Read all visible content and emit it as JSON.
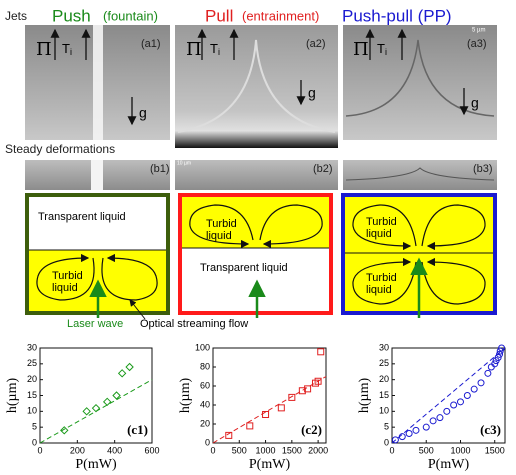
{
  "header": {
    "jets": "Jets",
    "push": "Push",
    "push_note": "(fountain)",
    "pull": "Pull",
    "pull_note": "(entrainment)",
    "push_pull": "Push-pull (PP)"
  },
  "symbols": {
    "pi": "Π",
    "t": "T",
    "i": "i",
    "g": "g"
  },
  "photos": {
    "a": [
      "(a1)",
      "(a2)",
      "(a3)"
    ],
    "scale_a3": "5 µm",
    "section": "Steady deformations",
    "b": [
      "(b1)",
      "(b2)",
      "(b3)"
    ],
    "scale_b2": "10 µm"
  },
  "diagrams": {
    "transparent": "Transparent liquid",
    "turbid": [
      "Turbid",
      "liquid"
    ],
    "laser": "Laser wave",
    "flow": "Optical streaming flow"
  },
  "chart_data": [
    {
      "type": "scatter",
      "label": "(c1)",
      "xlabel": "P(mW)",
      "ylabel": "h(µm)",
      "marker": "diamond",
      "color": "#1a9a1a",
      "x": [
        130,
        250,
        300,
        360,
        410,
        440,
        480
      ],
      "values": [
        4,
        10,
        11,
        13,
        15,
        22,
        24
      ],
      "fit": {
        "x": [
          0,
          600
        ],
        "values": [
          0,
          20
        ]
      },
      "xlim": [
        0,
        600
      ],
      "ylim": [
        0,
        30
      ],
      "xticks": [
        0,
        200,
        400,
        600
      ],
      "yticks": [
        0,
        5,
        10,
        15,
        20,
        25,
        30
      ]
    },
    {
      "type": "scatter",
      "label": "(c2)",
      "xlabel": "P(mW)",
      "ylabel": "h(µm)",
      "marker": "square",
      "color": "#e02020",
      "x": [
        300,
        700,
        1000,
        1300,
        1500,
        1700,
        1800,
        1950,
        2000,
        2050
      ],
      "values": [
        8,
        18,
        30,
        37,
        48,
        55,
        57,
        63,
        65,
        96
      ],
      "fit": {
        "x": [
          0,
          2150
        ],
        "values": [
          0,
          70
        ]
      },
      "xlim": [
        0,
        2150
      ],
      "ylim": [
        0,
        100
      ],
      "xticks": [
        0,
        500,
        1000,
        1500,
        2000
      ],
      "yticks": [
        0,
        20,
        40,
        60,
        80,
        100
      ]
    },
    {
      "type": "scatter",
      "label": "(c3)",
      "xlabel": "P(mW)",
      "ylabel": "h(µm)",
      "marker": "circle",
      "color": "#1a1ad0",
      "x": [
        50,
        150,
        250,
        350,
        500,
        600,
        700,
        800,
        900,
        1000,
        1100,
        1200,
        1300,
        1400,
        1450,
        1500,
        1520,
        1550,
        1570,
        1580,
        1600
      ],
      "values": [
        1,
        2,
        3,
        4,
        5,
        7,
        8,
        10,
        12,
        13,
        15,
        17,
        19,
        22,
        24,
        25,
        26,
        27,
        28,
        29,
        30
      ],
      "fit": {
        "x": [
          0,
          1650
        ],
        "values": [
          0,
          30
        ]
      },
      "xlim": [
        0,
        1650
      ],
      "ylim": [
        0,
        30
      ],
      "xticks": [
        0,
        500,
        1000,
        1500
      ],
      "yticks": [
        0,
        5,
        10,
        15,
        20,
        25,
        30
      ]
    }
  ]
}
